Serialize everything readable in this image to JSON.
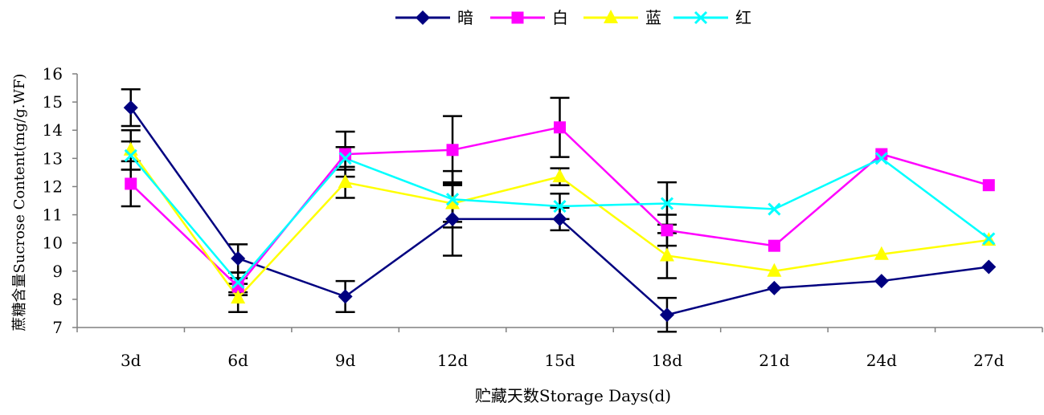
{
  "chart_data": {
    "type": "line",
    "title": "",
    "xlabel": "贮藏天数Storage Days(d)",
    "ylabel": "蔗糖含量Sucrose Content(mg/g.WF)",
    "categories": [
      "3d",
      "6d",
      "9d",
      "12d",
      "15d",
      "18d",
      "21d",
      "24d",
      "27d"
    ],
    "ylim": [
      7,
      16
    ],
    "yticks": [
      7,
      8,
      9,
      10,
      11,
      12,
      13,
      14,
      15,
      16
    ],
    "grid": false,
    "legend_position": "top-center",
    "series": [
      {
        "name": "暗",
        "color": "#000080",
        "marker": "diamond",
        "values": [
          14.8,
          9.45,
          8.1,
          10.85,
          10.85,
          7.45,
          8.4,
          8.65,
          9.15
        ],
        "errors": [
          0.65,
          0.5,
          0.55,
          1.3,
          0.4,
          0.6,
          null,
          null,
          null
        ]
      },
      {
        "name": "白",
        "color": "#ff00ff",
        "marker": "square",
        "values": [
          12.1,
          8.45,
          13.15,
          13.3,
          14.1,
          10.45,
          9.9,
          13.15,
          12.05
        ],
        "errors": [
          0.8,
          0.3,
          0.8,
          1.2,
          1.05,
          0.55,
          null,
          null,
          null
        ]
      },
      {
        "name": "蓝",
        "color": "#ffff00",
        "marker": "triangle",
        "values": [
          13.3,
          8.05,
          12.15,
          11.4,
          12.35,
          9.55,
          9.0,
          9.6,
          10.1
        ],
        "errors": [
          0.7,
          0.5,
          0.55,
          0.65,
          0.3,
          0.8,
          null,
          null,
          null
        ]
      },
      {
        "name": "红",
        "color": "#00ffff",
        "marker": "x",
        "values": [
          13.1,
          8.6,
          13.0,
          11.55,
          11.3,
          11.4,
          11.2,
          13.0,
          10.15
        ],
        "errors": [
          0.5,
          0.35,
          0.4,
          1.0,
          0.45,
          0.75,
          null,
          null,
          null
        ]
      }
    ]
  }
}
